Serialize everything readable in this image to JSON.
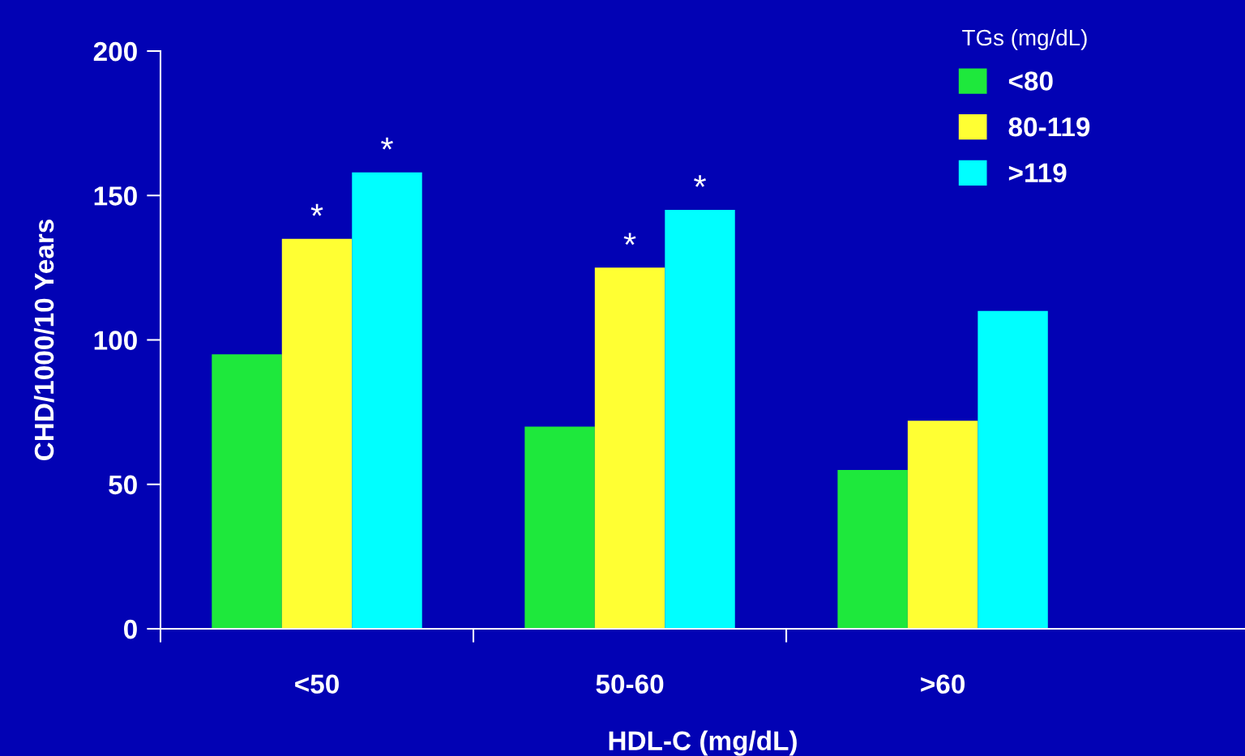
{
  "chart_data": {
    "type": "bar",
    "xlabel": "HDL-C (mg/dL)",
    "ylabel": "CHD/1000/10 Years",
    "legend_title": "TGs (mg/dL)",
    "categories": [
      "<50",
      "50-60",
      ">60"
    ],
    "series": [
      {
        "name": "<80",
        "color": "#1ee83c",
        "values": [
          95,
          70,
          55
        ]
      },
      {
        "name": "80-119",
        "color": "#ffff33",
        "values": [
          135,
          125,
          72
        ],
        "value_labels": [
          "*",
          "*",
          null
        ]
      },
      {
        "name": ">119",
        "color": "#00ffff",
        "values": [
          158,
          145,
          110
        ],
        "value_labels": [
          "*",
          "*",
          null
        ]
      }
    ],
    "ylim": [
      0,
      200
    ],
    "yticks": [
      0,
      50,
      100,
      150,
      200
    ],
    "legend": "top right"
  }
}
